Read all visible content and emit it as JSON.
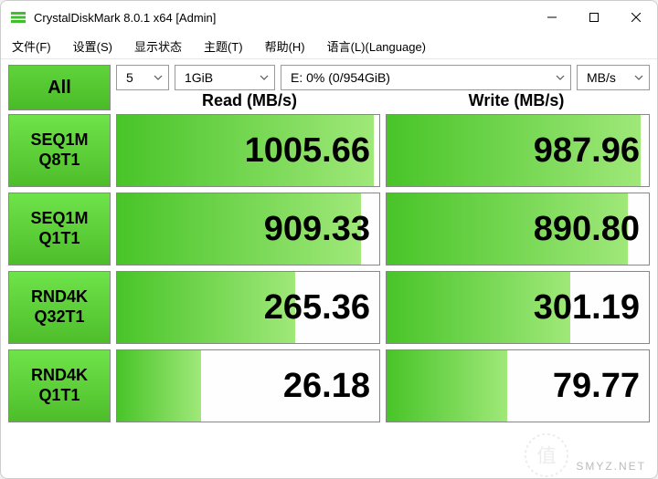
{
  "window": {
    "title": "CrystalDiskMark 8.0.1 x64 [Admin]"
  },
  "menu": {
    "file": "文件(F)",
    "settings": "设置(S)",
    "display": "显示状态",
    "theme": "主题(T)",
    "help": "帮助(H)",
    "language": "语言(L)(Language)"
  },
  "controls": {
    "all_label": "All",
    "count": "5",
    "size": "1GiB",
    "drive": "E: 0% (0/954GiB)",
    "unit": "MB/s"
  },
  "headers": {
    "read": "Read (MB/s)",
    "write": "Write (MB/s)"
  },
  "rows": [
    {
      "label1": "SEQ1M",
      "label2": "Q8T1",
      "read": "1005.66",
      "read_pct": 98,
      "write": "987.96",
      "write_pct": 97
    },
    {
      "label1": "SEQ1M",
      "label2": "Q1T1",
      "read": "909.33",
      "read_pct": 93,
      "write": "890.80",
      "write_pct": 92
    },
    {
      "label1": "RND4K",
      "label2": "Q32T1",
      "read": "265.36",
      "read_pct": 68,
      "write": "301.19",
      "write_pct": 70
    },
    {
      "label1": "RND4K",
      "label2": "Q1T1",
      "read": "26.18",
      "read_pct": 32,
      "write": "79.77",
      "write_pct": 46
    }
  ],
  "watermark": {
    "text": "SMYZ.NET",
    "badge_text": "值"
  },
  "colors": {
    "green_grad_start": "#6fe34a",
    "green_grad_end": "#4dbe2a",
    "bar_grad_start": "#48c428",
    "bar_grad_end": "#9fe879",
    "border": "#888888",
    "background": "#ffffff"
  }
}
